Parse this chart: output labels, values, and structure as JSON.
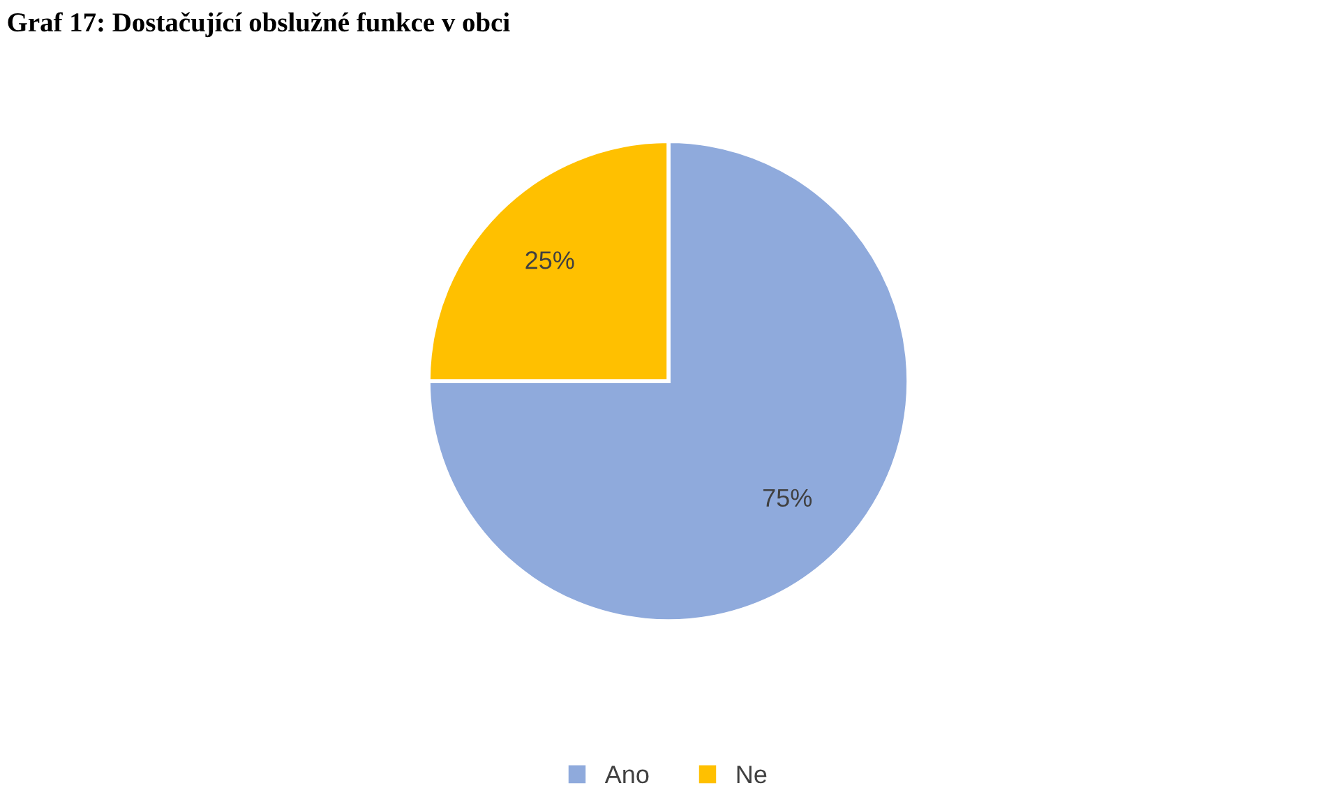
{
  "chart_data": {
    "type": "pie",
    "title": "Graf 17: Dostačující obslužné funkce v obci",
    "categories": [
      "Ano",
      "Ne"
    ],
    "values": [
      75,
      25
    ],
    "colors": [
      "#8faadc",
      "#ffc000"
    ],
    "value_labels": [
      "75%",
      "25%"
    ],
    "legend": "bottom"
  }
}
